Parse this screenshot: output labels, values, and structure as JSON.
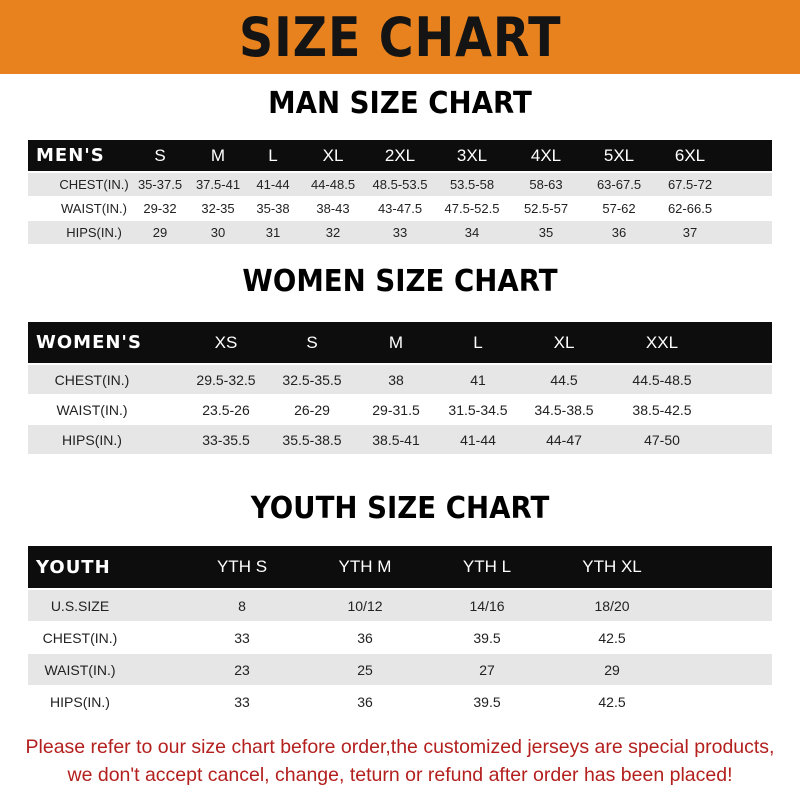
{
  "banner": {
    "title": "SIZE CHART",
    "color": "#E8821E"
  },
  "men": {
    "title": "MAN SIZE CHART",
    "header": [
      "MEN'S",
      "S",
      "M",
      "L",
      "XL",
      "2XL",
      "3XL",
      "4XL",
      "5XL",
      "6XL"
    ],
    "rows": [
      [
        "CHEST(IN.)",
        "35-37.5",
        "37.5-41",
        "41-44",
        "44-48.5",
        "48.5-53.5",
        "53.5-58",
        "58-63",
        "63-67.5",
        "67.5-72"
      ],
      [
        "WAIST(IN.)",
        "29-32",
        "32-35",
        "35-38",
        "38-43",
        "43-47.5",
        "47.5-52.5",
        "52.5-57",
        "57-62",
        "62-66.5"
      ],
      [
        "HIPS(IN.)",
        "29",
        "30",
        "31",
        "32",
        "33",
        "34",
        "35",
        "36",
        "37"
      ]
    ]
  },
  "women": {
    "title": "WOMEN SIZE CHART",
    "header": [
      "WOMEN'S",
      "XS",
      "S",
      "M",
      "L",
      "XL",
      "XXL"
    ],
    "rows": [
      [
        "CHEST(IN.)",
        "29.5-32.5",
        "32.5-35.5",
        "38",
        "41",
        "44.5",
        "44.5-48.5"
      ],
      [
        "WAIST(IN.)",
        "23.5-26",
        "26-29",
        "29-31.5",
        "31.5-34.5",
        "34.5-38.5",
        "38.5-42.5"
      ],
      [
        "HIPS(IN.)",
        "33-35.5",
        "35.5-38.5",
        "38.5-41",
        "41-44",
        "44-47",
        "47-50"
      ]
    ]
  },
  "youth": {
    "title": "YOUTH SIZE CHART",
    "header": [
      "YOUTH",
      "YTH S",
      "YTH M",
      "YTH L",
      "YTH XL"
    ],
    "rows": [
      [
        "U.S.SIZE",
        "8",
        "10/12",
        "14/16",
        "18/20"
      ],
      [
        "CHEST(IN.)",
        "33",
        "36",
        "39.5",
        "42.5"
      ],
      [
        "WAIST(IN.)",
        "23",
        "25",
        "27",
        "29"
      ],
      [
        "HIPS(IN.)",
        "33",
        "36",
        "39.5",
        "42.5"
      ]
    ]
  },
  "footer": {
    "line1": "Please refer to our size chart before order,the customized jerseys are special products,",
    "line2": "we don't accept cancel, change, teturn or refund after order has been placed!",
    "color": "#B3201E"
  }
}
